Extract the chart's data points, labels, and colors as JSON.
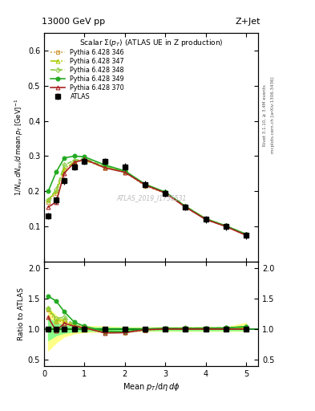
{
  "title_top": "13000 GeV pp",
  "title_right": "Z+Jet",
  "subtitle": "Scalar Σ(p_{T}) (ATLAS UE in Z production)",
  "xlabel": "Mean p_{T}/dη dφ",
  "ylabel_main": "1/N_{ev} dN_{ev}/d mean p_{T} [GeV]^{-1}",
  "ylabel_ratio": "Ratio to ATLAS",
  "watermark": "ATLAS_2019_I1736531",
  "right_label": "Rivet 3.1.10, ≥ 3.4M events",
  "right_label2": "mcplots.cern.ch [arXiv:1306.3436]",
  "x_main": [
    0.1,
    0.3,
    0.5,
    0.75,
    1.0,
    1.5,
    2.0,
    2.5,
    3.0,
    3.5,
    4.0,
    4.5,
    5.0
  ],
  "atlas_y": [
    0.13,
    0.175,
    0.23,
    0.27,
    0.285,
    0.285,
    0.27,
    0.22,
    0.195,
    0.155,
    0.12,
    0.1,
    0.075
  ],
  "atlas_yerr": [
    0.01,
    0.01,
    0.01,
    0.01,
    0.01,
    0.01,
    0.01,
    0.01,
    0.01,
    0.01,
    0.01,
    0.01,
    0.01
  ],
  "py346_y": [
    0.17,
    0.195,
    0.26,
    0.285,
    0.29,
    0.27,
    0.255,
    0.215,
    0.195,
    0.155,
    0.12,
    0.1,
    0.075
  ],
  "py347_y": [
    0.175,
    0.2,
    0.265,
    0.283,
    0.288,
    0.268,
    0.255,
    0.22,
    0.196,
    0.157,
    0.122,
    0.101,
    0.077
  ],
  "py348_y": [
    0.175,
    0.205,
    0.275,
    0.288,
    0.293,
    0.271,
    0.257,
    0.22,
    0.197,
    0.158,
    0.122,
    0.102,
    0.078
  ],
  "py349_y": [
    0.2,
    0.255,
    0.295,
    0.3,
    0.298,
    0.275,
    0.258,
    0.22,
    0.198,
    0.157,
    0.122,
    0.102,
    0.078
  ],
  "py370_y": [
    0.155,
    0.17,
    0.252,
    0.282,
    0.291,
    0.267,
    0.254,
    0.218,
    0.195,
    0.155,
    0.12,
    0.1,
    0.075
  ],
  "band_yellow_lo": [
    0.65,
    0.78,
    0.88,
    0.93,
    0.95,
    0.96,
    0.97,
    0.97,
    0.97,
    0.97,
    0.97,
    0.97,
    0.97
  ],
  "band_yellow_hi": [
    1.35,
    1.22,
    1.12,
    1.07,
    1.05,
    1.04,
    1.03,
    1.03,
    1.03,
    1.03,
    1.03,
    1.03,
    1.1
  ],
  "band_green_lo": [
    0.82,
    0.9,
    0.94,
    0.96,
    0.97,
    0.975,
    0.98,
    0.98,
    0.98,
    0.98,
    0.98,
    0.98,
    0.98
  ],
  "band_green_hi": [
    1.18,
    1.1,
    1.06,
    1.04,
    1.03,
    1.025,
    1.02,
    1.02,
    1.02,
    1.02,
    1.02,
    1.02,
    1.05
  ],
  "ylim_main": [
    0.0,
    0.65
  ],
  "ylim_ratio": [
    0.4,
    2.1
  ],
  "xlim": [
    0.0,
    5.3
  ],
  "color_346": "#cc9933",
  "color_347": "#aacc00",
  "color_348": "#88cc44",
  "color_349": "#22aa22",
  "color_370": "#aa2222",
  "band_yellow": "#ffff88",
  "band_green": "#88ff88",
  "yticks_main": [
    0.0,
    0.1,
    0.2,
    0.3,
    0.4,
    0.5,
    0.6
  ],
  "yticks_ratio": [
    0.5,
    1.0,
    1.5,
    2.0
  ],
  "xticks": [
    0,
    1,
    2,
    3,
    4,
    5
  ]
}
